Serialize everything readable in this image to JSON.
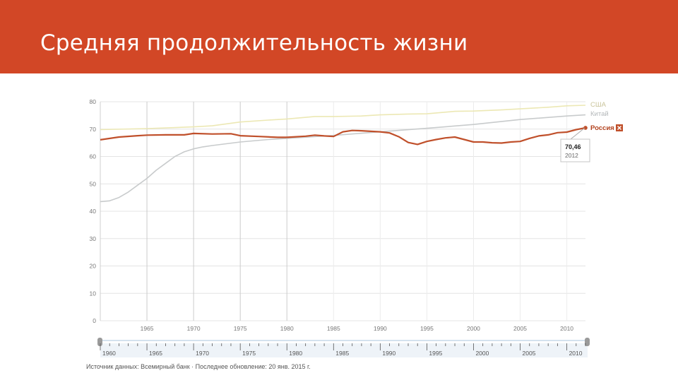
{
  "slide": {
    "title": "Средняя продолжительность жизни"
  },
  "tooltip": {
    "value": "70,46",
    "year": "2012"
  },
  "source": {
    "text": "Источник данных: Всемирный банк · Последнее обновление: 20 янв. 2015 г."
  },
  "legend": {
    "close_icon": "close-icon"
  },
  "colors": {
    "band": "#d24726",
    "russia": "#c0502b",
    "usa": "#ece8b4",
    "china": "#c8cbcc",
    "grid": "#e4e4e4",
    "tick_text": "#777777"
  },
  "chart_data": {
    "type": "line",
    "title": "",
    "xlabel": "",
    "ylabel": "",
    "xlim": [
      1960,
      2012
    ],
    "ylim": [
      0,
      80
    ],
    "x_ticks": [
      1965,
      1970,
      1975,
      1980,
      1985,
      1990,
      1995,
      2000,
      2005,
      2010
    ],
    "y_ticks": [
      0,
      10,
      20,
      30,
      40,
      50,
      60,
      70,
      80
    ],
    "timeline_ticks": [
      1960,
      1965,
      1970,
      1975,
      1980,
      1985,
      1990,
      1995,
      2000,
      2005,
      2010
    ],
    "grid": true,
    "legend_position": "right",
    "series": [
      {
        "name": "США",
        "x": [
          1960,
          1965,
          1970,
          1972,
          1975,
          1978,
          1980,
          1983,
          1985,
          1988,
          1990,
          1993,
          1995,
          1998,
          2000,
          2003,
          2005,
          2008,
          2010,
          2012
        ],
        "y": [
          69.8,
          70.2,
          70.8,
          71.2,
          72.6,
          73.3,
          73.7,
          74.6,
          74.6,
          74.8,
          75.2,
          75.5,
          75.6,
          76.5,
          76.6,
          77.0,
          77.4,
          78.0,
          78.5,
          78.7
        ]
      },
      {
        "name": "Китай",
        "x": [
          1960,
          1961,
          1962,
          1963,
          1964,
          1965,
          1966,
          1967,
          1968,
          1969,
          1970,
          1971,
          1972,
          1975,
          1978,
          1980,
          1985,
          1990,
          1995,
          2000,
          2005,
          2010,
          2012
        ],
        "y": [
          43.5,
          43.8,
          45.0,
          47.0,
          49.5,
          52.0,
          55.0,
          57.5,
          60.0,
          61.7,
          62.8,
          63.5,
          64.0,
          65.3,
          66.2,
          66.6,
          67.7,
          69.0,
          70.3,
          71.7,
          73.5,
          74.8,
          75.2
        ]
      },
      {
        "name": "Россия",
        "x": [
          1960,
          1962,
          1964,
          1965,
          1967,
          1969,
          1970,
          1972,
          1974,
          1975,
          1977,
          1979,
          1980,
          1982,
          1983,
          1984,
          1985,
          1986,
          1987,
          1988,
          1989,
          1990,
          1991,
          1992,
          1993,
          1994,
          1995,
          1996,
          1997,
          1998,
          1999,
          2000,
          2001,
          2002,
          2003,
          2004,
          2005,
          2006,
          2007,
          2008,
          2009,
          2010,
          2011,
          2012
        ],
        "y": [
          66.1,
          67.1,
          67.6,
          67.8,
          67.9,
          67.9,
          68.4,
          68.2,
          68.3,
          67.6,
          67.3,
          67.0,
          67.0,
          67.4,
          67.8,
          67.5,
          67.3,
          69.0,
          69.5,
          69.4,
          69.2,
          69.0,
          68.6,
          67.2,
          65.1,
          64.4,
          65.5,
          66.2,
          66.8,
          67.1,
          66.2,
          65.3,
          65.3,
          65.0,
          64.9,
          65.3,
          65.5,
          66.6,
          67.5,
          67.9,
          68.7,
          68.9,
          69.8,
          70.46
        ]
      }
    ]
  }
}
